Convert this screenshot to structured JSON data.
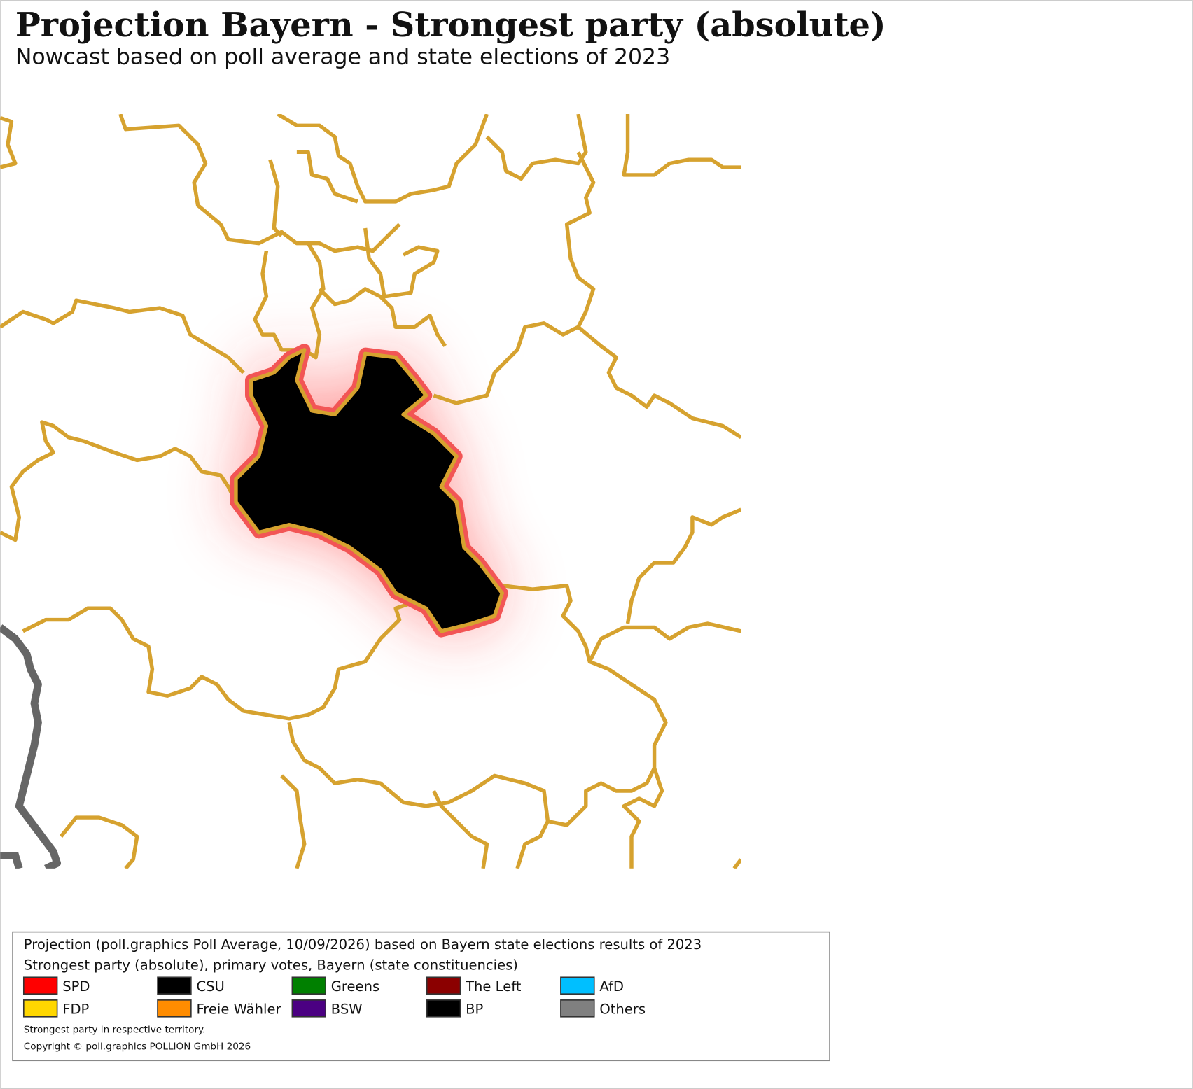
{
  "header": {
    "title": "Projection Bayern - Strongest party (absolute)",
    "subtitle": "Nowcast based on poll average and state elections of 2023"
  },
  "legend": {
    "source": "Projection (poll.graphics Poll Average, 10/09/2026) based on Bayern state elections results of 2023",
    "description": "Strongest party (absolute), primary votes, Bayern (state constituencies)",
    "items": [
      {
        "label": "SPD",
        "color": "#ff0000"
      },
      {
        "label": "CSU",
        "color": "#000000"
      },
      {
        "label": "Greens",
        "color": "#008000"
      },
      {
        "label": "The Left",
        "color": "#8b0000"
      },
      {
        "label": "AfD",
        "color": "#00bfff"
      },
      {
        "label": "FDP",
        "color": "#ffd700"
      },
      {
        "label": "Freie Wähler",
        "color": "#ff8c00"
      },
      {
        "label": "BSW",
        "color": "#4b0082"
      },
      {
        "label": "BP",
        "color": "#000000"
      },
      {
        "label": "Others",
        "color": "#808080"
      }
    ],
    "notes": [
      "Strongest party in respective territory.",
      "Copyright © poll.graphics POLLION GmbH 2026"
    ]
  }
}
